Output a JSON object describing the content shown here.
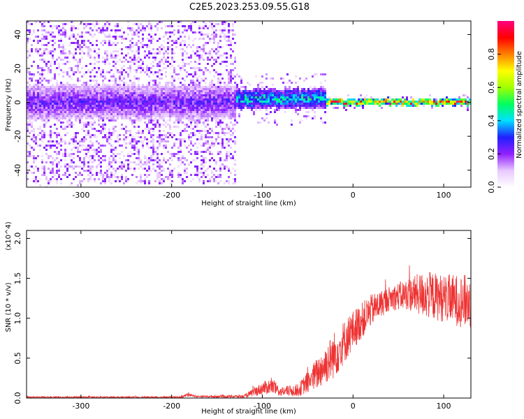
{
  "title": "C2E5.2023.253.09.55.G18",
  "chart_data": [
    {
      "type": "heatmap",
      "title": "C2E5.2023.253.09.55.G18",
      "xlabel": "Height of straight line (km)",
      "ylabel": "Frequency (Hz)",
      "xlim": [
        -360,
        130
      ],
      "ylim": [
        -50,
        48
      ],
      "x_ticks": [
        "-300",
        "-200",
        "-100",
        "0",
        "100"
      ],
      "y_ticks": [
        "-40",
        "-20",
        "0",
        "20",
        "40"
      ],
      "colorbar": {
        "label": "Normalized spectral amplitude",
        "range": [
          0,
          1
        ],
        "ticks": [
          "0.0",
          "0.2",
          "0.4",
          "0.6",
          "0.8"
        ],
        "colormap": [
          "#ffffff",
          "#e8c8ff",
          "#9020ff",
          "#2020ff",
          "#00e0ff",
          "#00ff60",
          "#a0ff00",
          "#ffff00",
          "#ff8000",
          "#ff0000",
          "#ff0080"
        ]
      },
      "signal_segments": [
        {
          "x_range": [
            -360,
            -130
          ],
          "center_freq": 0,
          "core_halfwidth": 10,
          "spread": 48,
          "amplitude": 0.25
        },
        {
          "x_range": [
            -130,
            -30
          ],
          "center_freq": 2,
          "core_halfwidth": 6,
          "spread": 15,
          "amplitude": 0.45
        },
        {
          "x_range": [
            -30,
            130
          ],
          "center_freq": 0,
          "core_halfwidth": 2,
          "spread": 4,
          "amplitude": 0.9
        }
      ]
    },
    {
      "type": "line",
      "xlabel": "Height of straight line (km)",
      "ylabel": "SNR (10 * v/v)",
      "y_multiplier": "(x10^4)",
      "xlim": [
        -360,
        130
      ],
      "ylim": [
        0,
        2.1
      ],
      "x_ticks": [
        "-300",
        "-200",
        "-100",
        "0",
        "100"
      ],
      "y_ticks": [
        "0.0",
        "0.5",
        "1.0",
        "1.5",
        "2.0"
      ],
      "series": [
        {
          "color": "#ee3333",
          "envelope": {
            "x": [
              -360,
              -190,
              -180,
              -175,
              -120,
              -100,
              -90,
              -80,
              -60,
              -40,
              -20,
              0,
              20,
              40,
              60,
              80,
              100,
              130
            ],
            "mean": [
              0.01,
              0.01,
              0.05,
              0.02,
              0.02,
              0.12,
              0.15,
              0.08,
              0.1,
              0.3,
              0.55,
              0.85,
              1.1,
              1.25,
              1.3,
              1.3,
              1.25,
              1.2
            ],
            "noise": [
              0.01,
              0.01,
              0.03,
              0.01,
              0.02,
              0.08,
              0.1,
              0.06,
              0.08,
              0.2,
              0.3,
              0.25,
              0.2,
              0.15,
              0.2,
              0.3,
              0.3,
              0.35
            ]
          }
        }
      ]
    }
  ]
}
